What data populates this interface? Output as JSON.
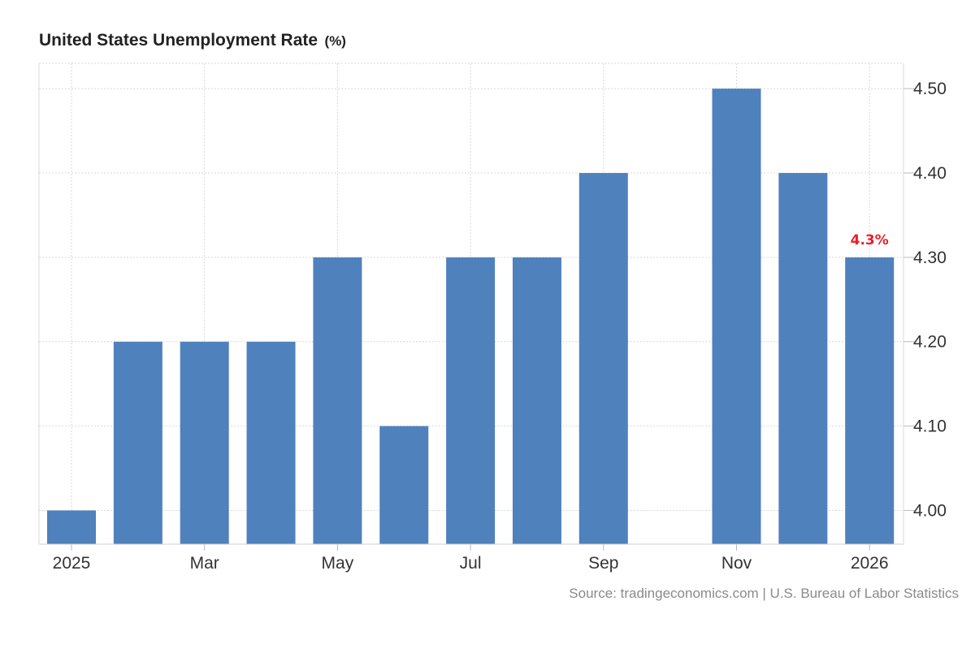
{
  "header": {
    "title": "United States Unemployment Rate",
    "unit": "(%)"
  },
  "footer": {
    "source": "Source: tradingeconomics.com | U.S. Bureau of Labor Statistics"
  },
  "colors": {
    "bar": "#4f81bd",
    "highlight_label": "#e8212b",
    "grid": "#d9d9d9",
    "axis_text": "#333333"
  },
  "chart_data": {
    "type": "bar",
    "categories": [
      "Jan 2025",
      "Feb 2025",
      "Mar 2025",
      "Apr 2025",
      "May 2025",
      "Jun 2025",
      "Jul 2025",
      "Aug 2025",
      "Sep 2025",
      "Oct 2025",
      "Nov 2025",
      "Dec 2025",
      "Jan 2026"
    ],
    "values": [
      4.0,
      4.2,
      4.2,
      4.2,
      4.3,
      4.1,
      4.3,
      4.3,
      4.4,
      null,
      4.5,
      4.4,
      4.3
    ],
    "x_tick_labels": [
      {
        "index": 0,
        "label": "2025"
      },
      {
        "index": 2,
        "label": "Mar"
      },
      {
        "index": 4,
        "label": "May"
      },
      {
        "index": 6,
        "label": "Jul"
      },
      {
        "index": 8,
        "label": "Sep"
      },
      {
        "index": 10,
        "label": "Nov"
      },
      {
        "index": 12,
        "label": "2026"
      }
    ],
    "y_ticks": [
      "4.00",
      "4.10",
      "4.20",
      "4.30",
      "4.40",
      "4.50"
    ],
    "ylim": [
      3.96,
      4.53
    ],
    "y_axis_side": "right",
    "grid": true,
    "last_value_label": "4.3%"
  }
}
